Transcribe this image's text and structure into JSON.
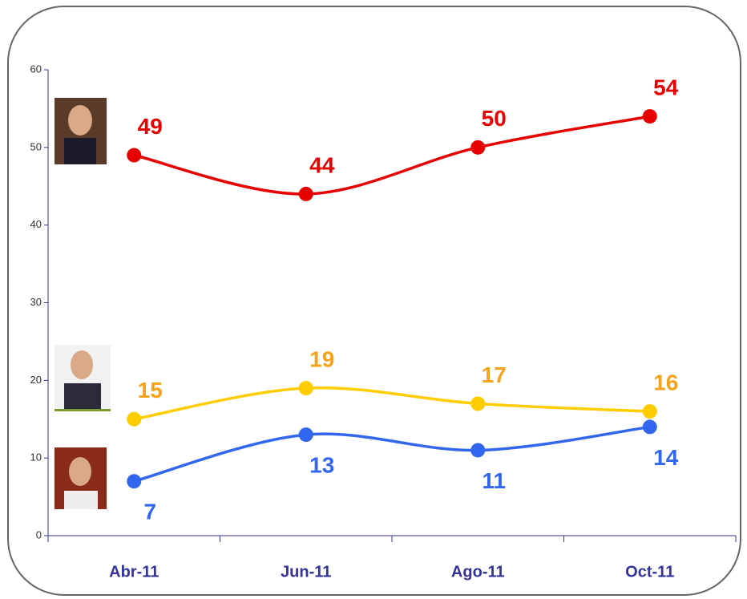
{
  "chart_data": {
    "type": "line",
    "categories": [
      "Abr-11",
      "Jun-11",
      "Ago-11",
      "Oct-11"
    ],
    "series": [
      {
        "color": "#e60000",
        "label_color": "#e60000",
        "values": [
          49,
          44,
          50,
          54
        ]
      },
      {
        "color": "#ffcc00",
        "label_color": "#f5a31a",
        "values": [
          15,
          19,
          17,
          16
        ]
      },
      {
        "color": "#3366ee",
        "label_color": "#3366ee",
        "values": [
          7,
          13,
          11,
          14
        ]
      }
    ],
    "ylim": [
      0,
      60
    ],
    "yticks": [
      0,
      10,
      20,
      30,
      40,
      50,
      60
    ],
    "grid": false
  }
}
